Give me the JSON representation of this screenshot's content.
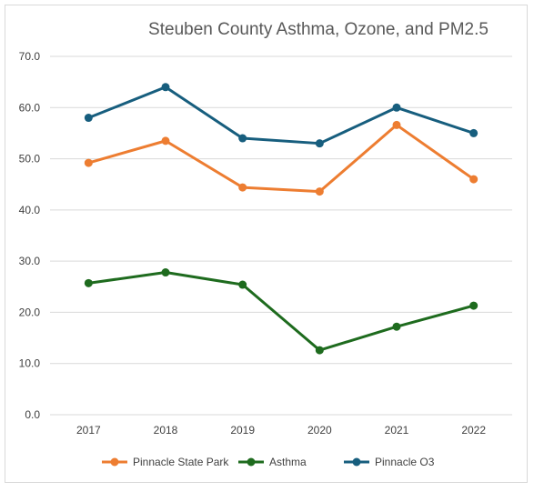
{
  "chart_data": {
    "type": "line",
    "title": "Steuben County Asthma, Ozone, and PM2.5",
    "xlabel": "",
    "ylabel": "",
    "categories": [
      "2017",
      "2018",
      "2019",
      "2020",
      "2021",
      "2022"
    ],
    "ylim": [
      0,
      70
    ],
    "yticks": [
      0,
      10,
      20,
      30,
      40,
      50,
      60,
      70
    ],
    "ytick_labels": [
      "0.0",
      "10.0",
      "20.0",
      "30.0",
      "40.0",
      "50.0",
      "60.0",
      "70.0"
    ],
    "grid": true,
    "legend_position": "bottom",
    "series": [
      {
        "name": "Pinnacle State Park",
        "color": "#ED7D31",
        "values": [
          49.2,
          53.5,
          44.4,
          43.6,
          56.6,
          46.0
        ]
      },
      {
        "name": "Asthma",
        "color": "#1E6B1E",
        "values": [
          25.7,
          27.8,
          25.4,
          12.6,
          17.2,
          21.3
        ]
      },
      {
        "name": "Pinnacle O3",
        "color": "#175E7E",
        "values": [
          58.0,
          64.0,
          54.0,
          53.0,
          60.0,
          55.0
        ]
      }
    ]
  }
}
